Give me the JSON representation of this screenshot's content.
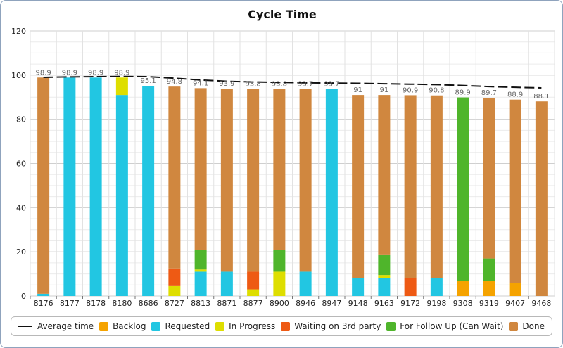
{
  "chart_data": {
    "type": "bar",
    "title": "Cycle Time",
    "xlabel": "",
    "ylabel": "",
    "ylim": [
      0,
      120
    ],
    "yticks": [
      0,
      20,
      40,
      60,
      80,
      100,
      120
    ],
    "grid": true,
    "legend_position": "bottom",
    "categories": [
      "8176",
      "8177",
      "8178",
      "8180",
      "8686",
      "8727",
      "8813",
      "8871",
      "8877",
      "8900",
      "8946",
      "8947",
      "9148",
      "9163",
      "9172",
      "9198",
      "9308",
      "9319",
      "9407",
      "9468"
    ],
    "totals_labels": [
      "98.9",
      "98.9",
      "98.9",
      "98.9",
      "95.1",
      "94.8",
      "94.1",
      "93.9",
      "93.8",
      "93.8",
      "93.7",
      "93.7",
      "91",
      "91",
      "90.9",
      "90.8",
      "89.9",
      "89.7",
      "88.9",
      "88.1"
    ],
    "series": [
      {
        "name": "Backlog",
        "color": "#f5a300",
        "values": [
          0,
          0,
          0,
          0,
          0,
          0,
          0,
          0,
          0,
          0,
          0,
          0,
          0,
          0,
          0,
          0,
          7,
          7,
          6,
          0
        ]
      },
      {
        "name": "Requested",
        "color": "#22c6e2",
        "values": [
          1,
          98.9,
          98.9,
          91,
          95.1,
          0,
          11,
          11,
          0,
          0,
          11,
          93.7,
          8,
          8,
          0,
          8,
          0,
          0,
          0,
          0
        ]
      },
      {
        "name": "In Progress",
        "color": "#dede00",
        "values": [
          0,
          0,
          0,
          7.9,
          0,
          4.5,
          1,
          0,
          3,
          11,
          0,
          0,
          0,
          1.5,
          0,
          0,
          0,
          0,
          0,
          0
        ]
      },
      {
        "name": "Waiting on 3rd party",
        "color": "#ee5a14",
        "values": [
          0,
          0,
          0,
          0,
          0,
          8,
          0,
          0,
          8,
          0,
          0,
          0,
          0,
          0,
          8,
          0,
          0,
          0,
          0,
          0
        ]
      },
      {
        "name": "For Follow Up (Can Wait)",
        "color": "#4fb52b",
        "values": [
          0,
          0,
          0,
          0,
          0,
          0,
          9,
          0,
          0,
          10,
          0,
          0,
          0,
          9,
          0,
          0,
          82.9,
          10,
          0,
          0
        ]
      },
      {
        "name": "Done",
        "color": "#d0873f",
        "values": [
          97.9,
          0,
          0,
          0,
          0,
          82.3,
          73.1,
          82.9,
          82.8,
          72.8,
          82.7,
          0,
          83,
          72.5,
          82.9,
          82.8,
          0,
          72.7,
          82.9,
          88.1
        ]
      }
    ],
    "line_series": {
      "name": "Average time",
      "color": "#111111",
      "style": "dashed",
      "values": [
        99,
        99.2,
        99.3,
        99.4,
        99.3,
        98.6,
        97.8,
        97.2,
        96.9,
        96.7,
        96.5,
        96.4,
        96.3,
        96.1,
        95.9,
        95.7,
        95.3,
        94.8,
        94.5,
        94.2
      ]
    }
  },
  "legend": {
    "average": "Average time",
    "backlog": "Backlog",
    "requested": "Requested",
    "inprogress": "In Progress",
    "waiting": "Waiting on 3rd party",
    "followup": "For Follow Up (Can Wait)",
    "done": "Done"
  }
}
